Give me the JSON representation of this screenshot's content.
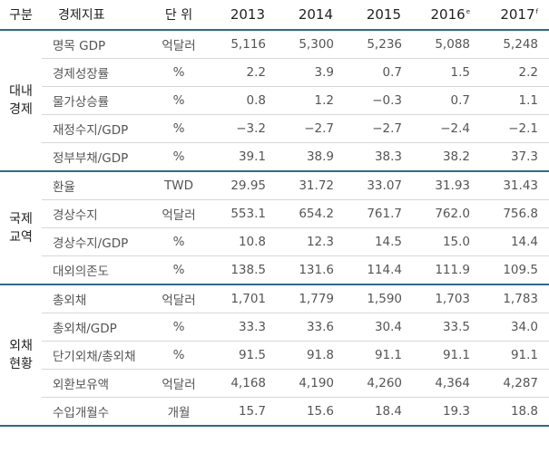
{
  "header": {
    "group": "구분",
    "indicator": "경제지표",
    "unit": "단 위",
    "years": [
      {
        "label": "2013",
        "sup": ""
      },
      {
        "label": "2014",
        "sup": ""
      },
      {
        "label": "2015",
        "sup": ""
      },
      {
        "label": "2016",
        "sup": "e"
      },
      {
        "label": "2017",
        "sup": "f"
      }
    ]
  },
  "sections": [
    {
      "name": "대내\n경제",
      "rows": [
        {
          "indicator": "명목 GDP",
          "unit": "억달러",
          "values": [
            "5,116",
            "5,300",
            "5,236",
            "5,088",
            "5,248"
          ]
        },
        {
          "indicator": "경제성장률",
          "unit": "%",
          "values": [
            "2.2",
            "3.9",
            "0.7",
            "1.5",
            "2.2"
          ]
        },
        {
          "indicator": "물가상승률",
          "unit": "%",
          "values": [
            "0.8",
            "1.2",
            "−0.3",
            "0.7",
            "1.1"
          ]
        },
        {
          "indicator": "재정수지/GDP",
          "unit": "%",
          "values": [
            "−3.2",
            "−2.7",
            "−2.7",
            "−2.4",
            "−2.1"
          ]
        },
        {
          "indicator": "정부부채/GDP",
          "unit": "%",
          "values": [
            "39.1",
            "38.9",
            "38.3",
            "38.2",
            "37.3"
          ]
        }
      ]
    },
    {
      "name": "국제\n교역",
      "rows": [
        {
          "indicator": "환율",
          "unit": "TWD",
          "values": [
            "29.95",
            "31.72",
            "33.07",
            "31.93",
            "31.43"
          ]
        },
        {
          "indicator": "경상수지",
          "unit": "억달러",
          "values": [
            "553.1",
            "654.2",
            "761.7",
            "762.0",
            "756.8"
          ]
        },
        {
          "indicator": "경상수지/GDP",
          "unit": "%",
          "values": [
            "10.8",
            "12.3",
            "14.5",
            "15.0",
            "14.4"
          ]
        },
        {
          "indicator": "대외의존도",
          "unit": "%",
          "values": [
            "138.5",
            "131.6",
            "114.4",
            "111.9",
            "109.5"
          ]
        }
      ]
    },
    {
      "name": "외채\n현황",
      "rows": [
        {
          "indicator": "총외채",
          "unit": "억달러",
          "values": [
            "1,701",
            "1,779",
            "1,590",
            "1,703",
            "1,783"
          ]
        },
        {
          "indicator": "총외채/GDP",
          "unit": "%",
          "values": [
            "33.3",
            "33.6",
            "30.4",
            "33.5",
            "34.0"
          ]
        },
        {
          "indicator": "단기외채/총외채",
          "unit": "%",
          "values": [
            "91.5",
            "91.8",
            "91.1",
            "91.1",
            "91.1"
          ]
        },
        {
          "indicator": "외환보유액",
          "unit": "억달러",
          "values": [
            "4,168",
            "4,190",
            "4,260",
            "4,364",
            "4,287"
          ]
        },
        {
          "indicator": "수입개월수",
          "unit": "개월",
          "values": [
            "15.7",
            "15.6",
            "18.4",
            "19.3",
            "18.8"
          ]
        }
      ]
    }
  ]
}
